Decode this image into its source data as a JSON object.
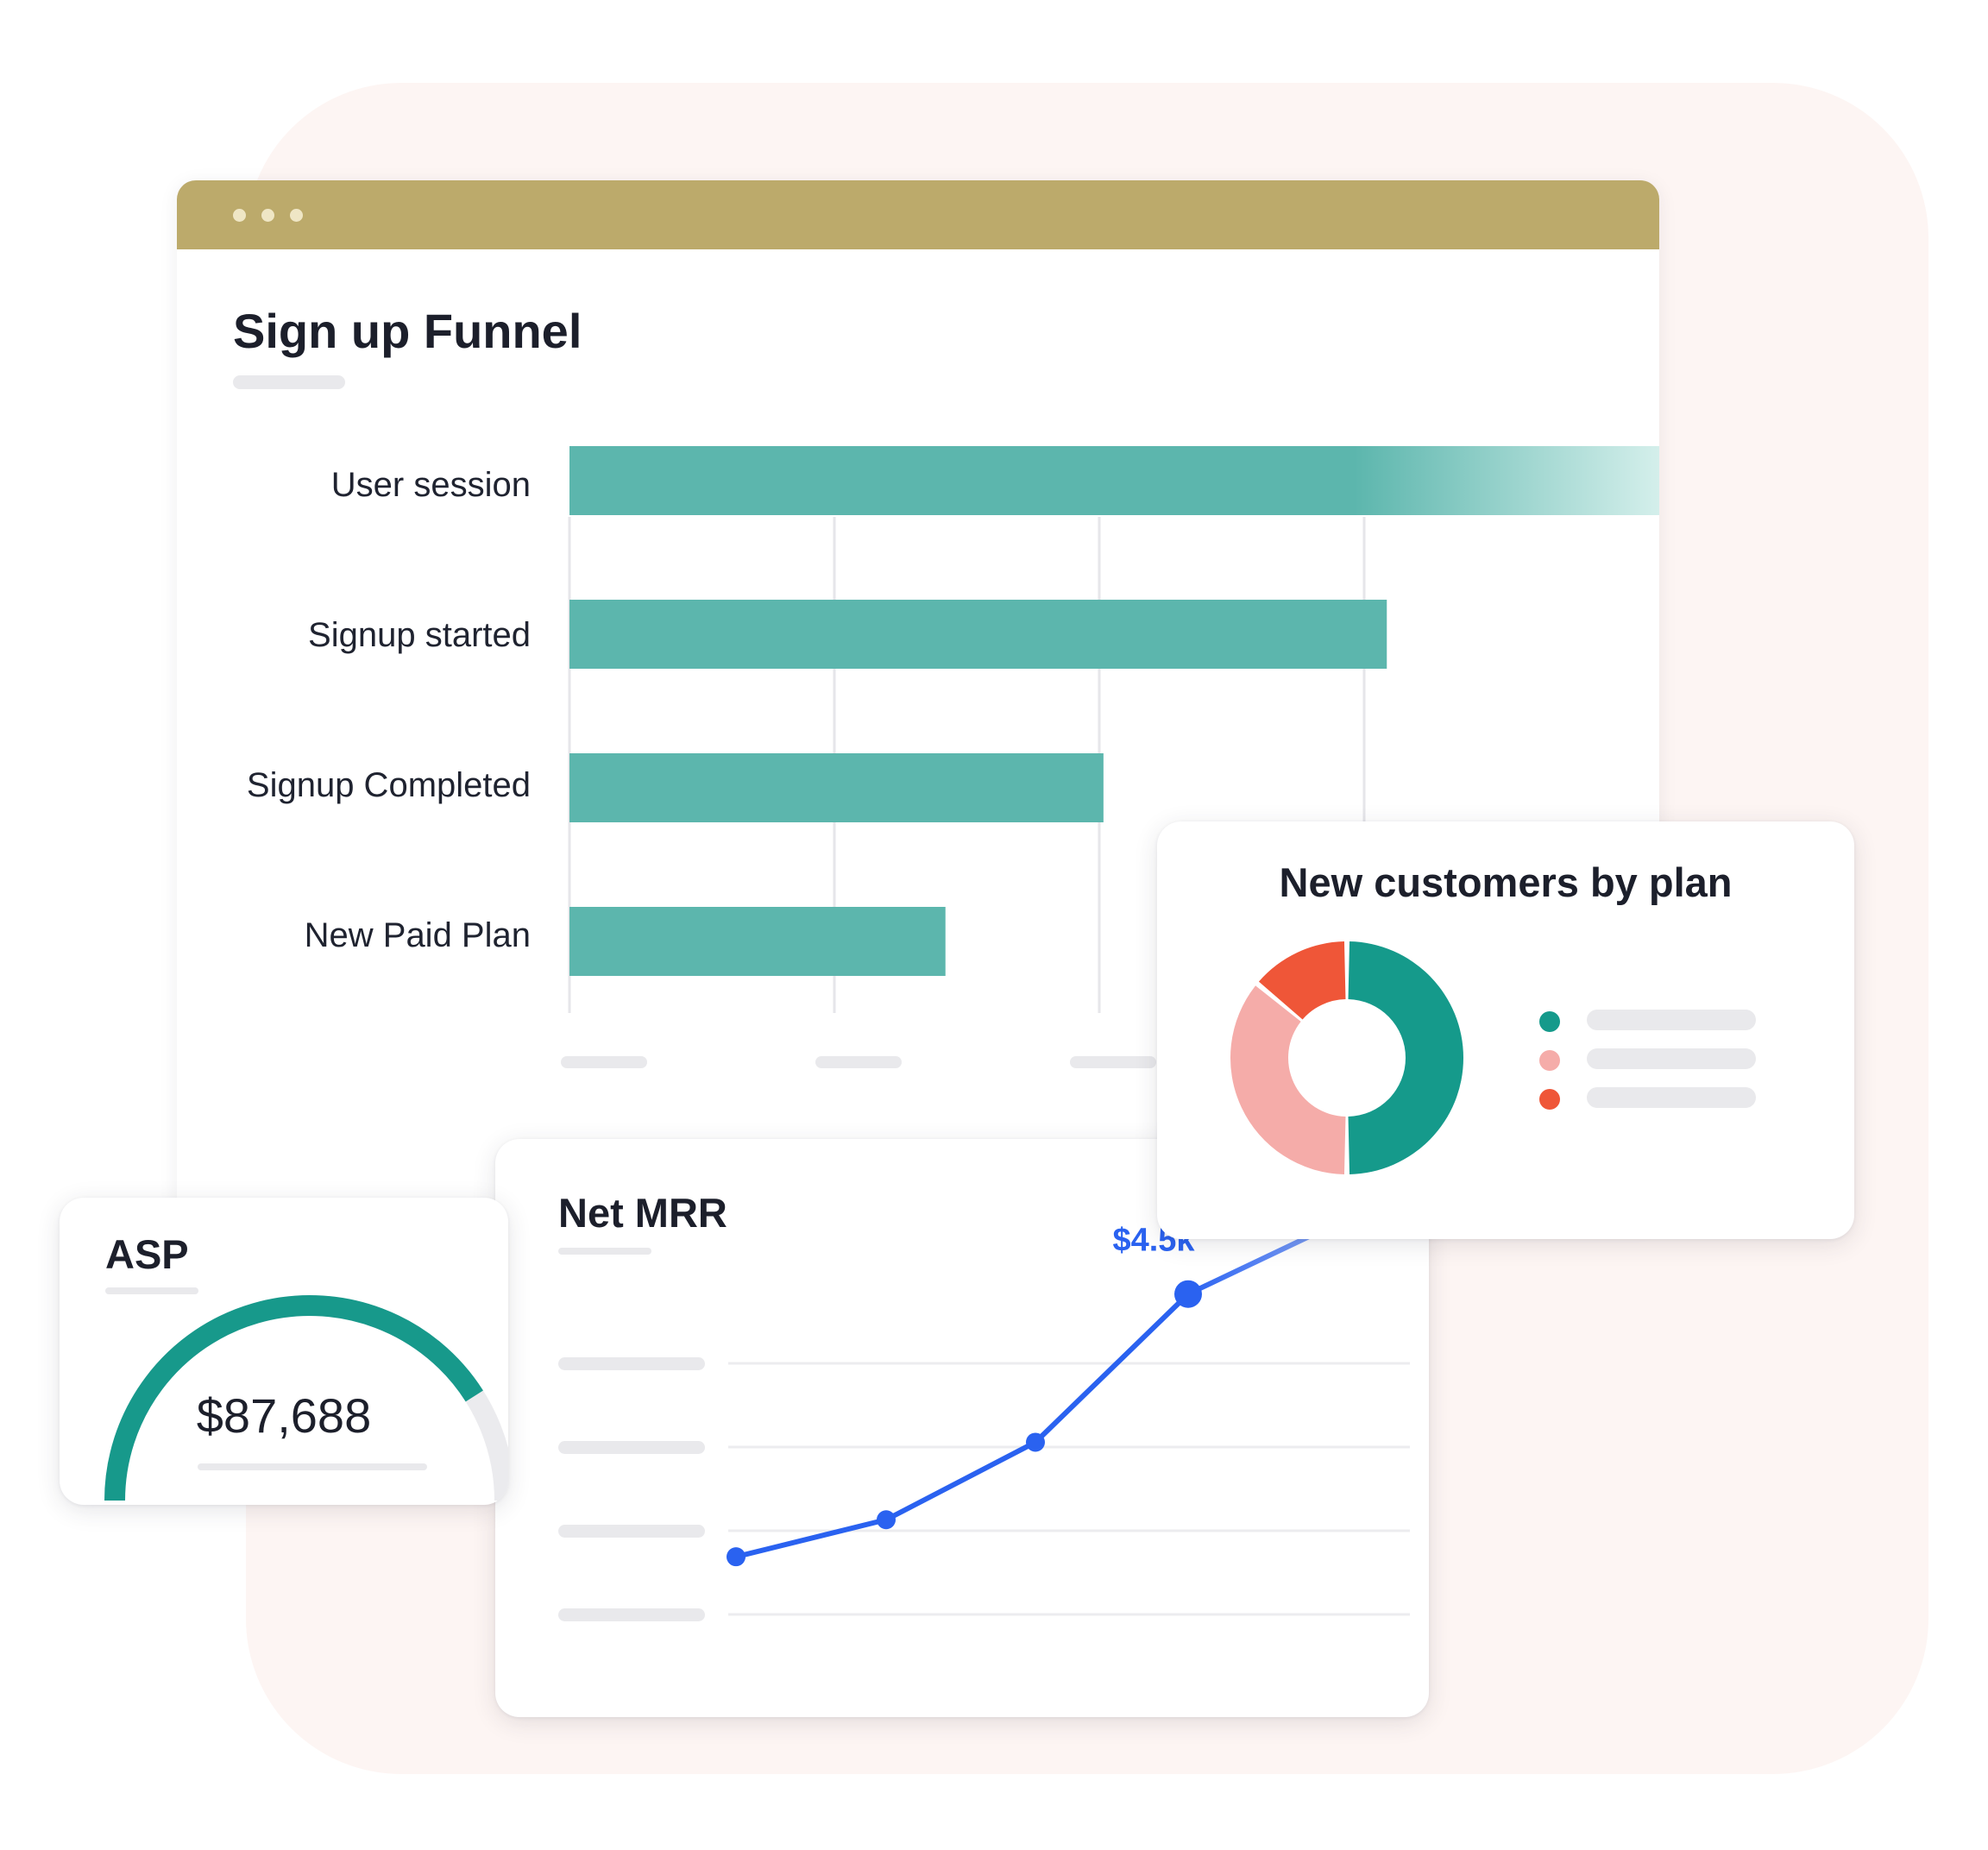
{
  "window": {
    "titlebar_color": "#bcaa6b"
  },
  "funnel": {
    "title": "Sign up Funnel",
    "chart_data": {
      "type": "bar",
      "orientation": "horizontal",
      "categories": [
        "User session",
        "Signup started",
        "Signup Completed",
        "New Paid Plan"
      ],
      "values": [
        100,
        75,
        49,
        34.5
      ],
      "xlim": [
        0,
        100
      ],
      "grid": true,
      "color": "#5cb6ad"
    }
  },
  "customers_by_plan": {
    "title": "New customers by plan",
    "chart_data": {
      "type": "pie",
      "donut": true,
      "values": [
        50,
        36,
        14
      ],
      "colors": [
        "#159a8b",
        "#f5aca9",
        "#ef5638"
      ]
    }
  },
  "asp": {
    "title": "ASP",
    "value": "$87,688",
    "gauge_fraction": 0.82,
    "gauge_color": "#17998b"
  },
  "net_mrr": {
    "title": "Net MRR",
    "chart_data": {
      "type": "line",
      "x": [
        1,
        2,
        3,
        4,
        5
      ],
      "values": [
        0.6,
        1.15,
        2.3,
        4.5,
        6.2
      ],
      "ylim": [
        0,
        6.2
      ],
      "annotation": {
        "index": 3,
        "label": "$4.5k"
      },
      "color": "#2a62f0"
    }
  }
}
